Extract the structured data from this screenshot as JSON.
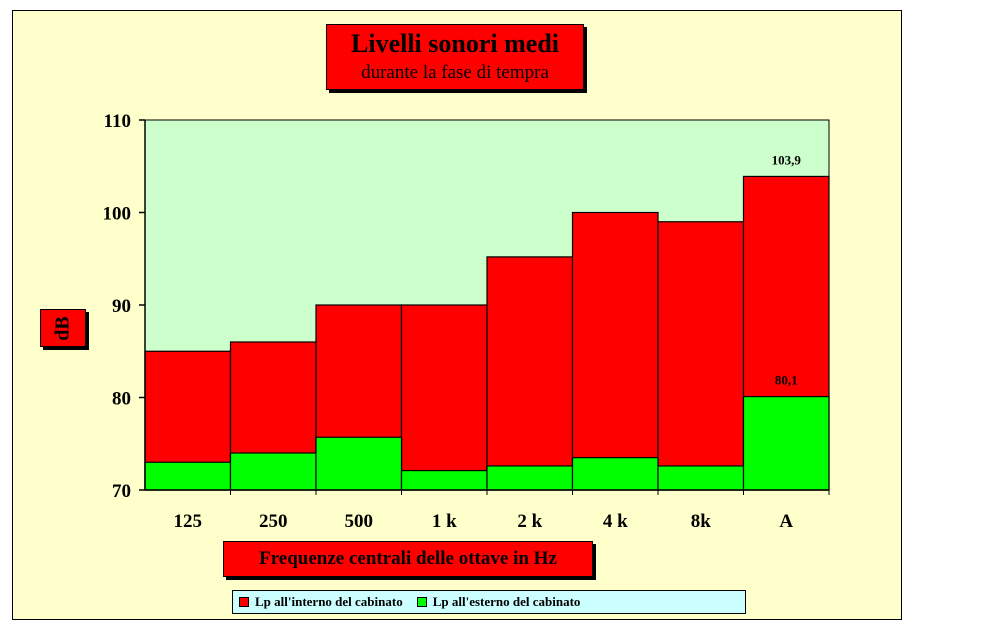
{
  "chart_data": {
    "type": "bar",
    "stacked": false,
    "overlay": true,
    "title": "Livelli sonori medi",
    "subtitle": "durante la fase di tempra",
    "xlabel": "Frequenze centrali delle ottave in Hz",
    "ylabel": "dB",
    "ylim": [
      70,
      110
    ],
    "yticks": [
      "70",
      "80",
      "90",
      "100",
      "110"
    ],
    "categories": [
      "125",
      "250",
      "500",
      "1 k",
      "2 k",
      "4 k",
      "8k",
      "A"
    ],
    "series": [
      {
        "name": "Lp all'interno del cabinato",
        "color": "#ff0000",
        "values": [
          85,
          86,
          90,
          90,
          95.2,
          100,
          99,
          103.9
        ]
      },
      {
        "name": "Lp all'esterno del cabinato",
        "color": "#00ff00",
        "values": [
          73,
          74,
          75.7,
          72.1,
          72.6,
          73.5,
          72.6,
          80.1
        ]
      }
    ],
    "data_labels": [
      {
        "series": 0,
        "index": 7,
        "text": "103,9"
      },
      {
        "series": 1,
        "index": 7,
        "text": "80,1"
      }
    ],
    "plot_background": "#ccffcc",
    "panel_background": "#ffffcc",
    "grid": false,
    "legend_position": "bottom"
  }
}
